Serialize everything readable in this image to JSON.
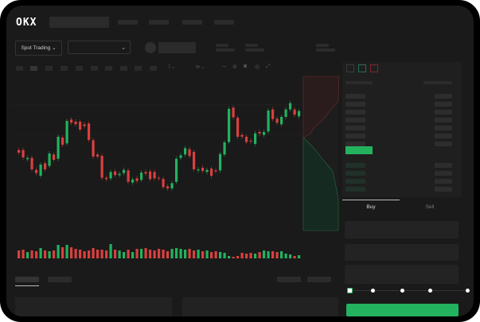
{
  "header": {
    "logo": "OKX"
  },
  "controls": {
    "market_button": "Spot Trading",
    "market_chevron": "⌄",
    "pair_chevron": "⌄"
  },
  "order_form": {
    "tabs": [
      "Buy",
      "Sell"
    ],
    "active_tab": "Buy",
    "slider_percent": 0
  },
  "colors": {
    "up": "#23b25e",
    "down": "#d9403f",
    "background": "#1a1a1a"
  },
  "candles": [
    [
      185,
      175
    ],
    [
      185,
      157
    ],
    [
      150,
      155
    ],
    [
      155,
      112
    ],
    [
      110,
      98
    ],
    [
      88,
      130
    ],
    [
      135,
      112
    ],
    [
      125,
      172
    ],
    [
      168,
      148
    ],
    [
      152,
      235
    ],
    [
      232,
      205
    ],
    [
      210,
      295
    ],
    [
      300,
      288
    ],
    [
      292,
      282
    ],
    [
      292,
      262
    ],
    [
      282,
      275
    ],
    [
      285,
      223
    ],
    [
      222,
      160
    ],
    [
      168,
      160
    ],
    [
      163,
      80
    ],
    [
      80,
      75
    ],
    [
      78,
      102
    ],
    [
      104,
      90
    ],
    [
      90,
      95
    ],
    [
      98,
      110
    ],
    [
      108,
      65
    ],
    [
      62,
      74
    ],
    [
      78,
      68
    ],
    [
      72,
      100
    ],
    [
      102,
      96
    ],
    [
      104,
      75
    ],
    [
      102,
      78
    ],
    [
      80,
      78
    ],
    [
      76,
      45
    ],
    [
      48,
      40
    ],
    [
      40,
      60
    ],
    [
      65,
      152
    ],
    [
      155,
      165
    ],
    [
      168,
      192
    ],
    [
      188,
      162
    ],
    [
      178,
      112
    ],
    [
      108,
      112
    ],
    [
      118,
      106
    ],
    [
      102,
      110
    ],
    [
      115,
      88
    ],
    [
      108,
      104
    ],
    [
      108,
      170
    ],
    [
      168,
      214
    ],
    [
      215,
      340
    ],
    [
      345,
      308
    ],
    [
      307,
      235
    ],
    [
      242,
      235
    ],
    [
      235,
      215
    ],
    [
      220,
      217
    ],
    [
      208,
      248
    ],
    [
      253,
      247
    ],
    [
      242,
      253
    ],
    [
      255,
      334
    ],
    [
      338,
      302
    ],
    [
      303,
      288
    ],
    [
      282,
      310
    ],
    [
      310,
      338
    ],
    [
      338,
      362
    ],
    [
      338,
      318
    ],
    [
      312,
      332
    ]
  ],
  "volumes": [
    10,
    11,
    8,
    10,
    9,
    13,
    10,
    9,
    10,
    17,
    14,
    17,
    14,
    12,
    11,
    9,
    10,
    13,
    11,
    11,
    10,
    18,
    11,
    10,
    8,
    11,
    8,
    12,
    12,
    13,
    11,
    10,
    12,
    11,
    9,
    12,
    13,
    12,
    11,
    12,
    10,
    11,
    9,
    10,
    8,
    9,
    8,
    7,
    3,
    2,
    3,
    7,
    6,
    7,
    6,
    8,
    10,
    9,
    9,
    8,
    9,
    6,
    5,
    3,
    4
  ]
}
